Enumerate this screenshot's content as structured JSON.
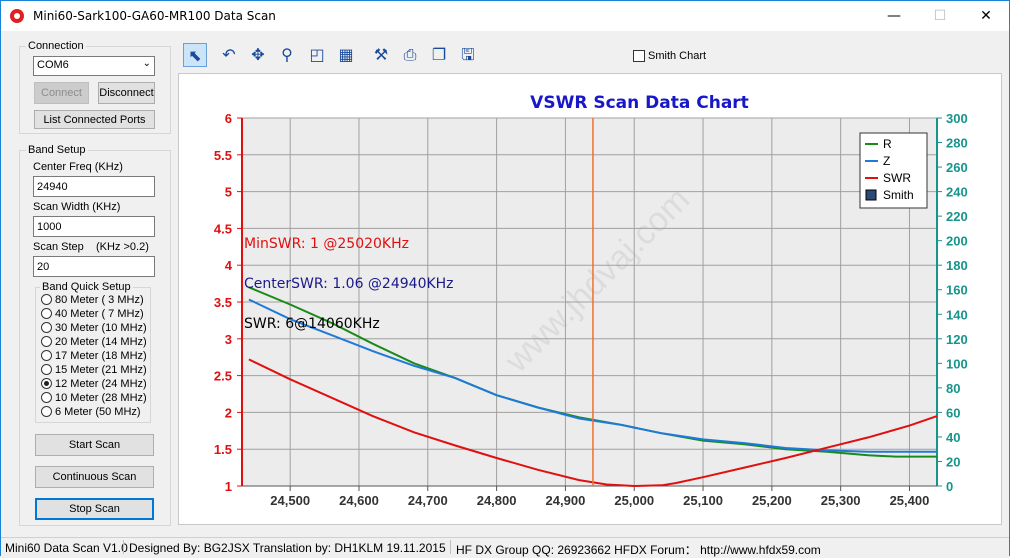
{
  "window": {
    "title": "Mini60-Sark100-GA60-MR100 Data Scan",
    "min_glyph": "—",
    "max_glyph": "☐",
    "close_glyph": "✕"
  },
  "connection": {
    "group_label": "Connection",
    "port_value": "COM6",
    "connect_label": "Connect",
    "disconnect_label": "Disconnect",
    "list_ports_label": "List Connected Ports"
  },
  "band_setup": {
    "group_label": "Band Setup",
    "center_freq_label": "Center Freq  (KHz)",
    "center_freq_value": "24940",
    "scan_width_label": "Scan Width   (KHz)",
    "scan_width_value": "1000",
    "scan_step_label": "Scan Step",
    "scan_step_hint": "(KHz >0.2)",
    "scan_step_value": "20",
    "quick_label": "Band Quick Setup",
    "bands": [
      {
        "label": "80 Meter  (  3 MHz)",
        "checked": false
      },
      {
        "label": "40 Meter  (  7 MHz)",
        "checked": false
      },
      {
        "label": "30 Meter  (10 MHz)",
        "checked": false
      },
      {
        "label": "20 Meter  (14 MHz)",
        "checked": false
      },
      {
        "label": "17 Meter  (18 MHz)",
        "checked": false
      },
      {
        "label": "15 Meter  (21 MHz)",
        "checked": false
      },
      {
        "label": "12 Meter  (24 MHz)",
        "checked": true
      },
      {
        "label": "10 Meter  (28 MHz)",
        "checked": false
      },
      {
        "label": "6 Meter   (50 MHz)",
        "checked": false
      }
    ]
  },
  "scan_buttons": {
    "start": "Start Scan",
    "continuous": "Continuous Scan",
    "stop": "Stop Scan"
  },
  "toolbar": {
    "tools": [
      {
        "name": "select-tool",
        "icon": "arrow-icon",
        "glyph": "⬉",
        "active": true
      },
      {
        "name": "undo-zoom-tool",
        "icon": "undo-icon",
        "glyph": "↶",
        "active": false
      },
      {
        "name": "pan-tool",
        "icon": "move-icon",
        "glyph": "✥",
        "active": false
      },
      {
        "name": "zoom-tool",
        "icon": "magnifier-icon",
        "glyph": "⚲",
        "active": false
      },
      {
        "name": "zoom-area-tool",
        "icon": "zoom-box-icon",
        "glyph": "◰",
        "active": false
      },
      {
        "name": "chart-settings-tool",
        "icon": "chart-icon",
        "glyph": "▦",
        "active": false
      },
      {
        "name": "properties-tool",
        "icon": "tools-icon",
        "glyph": "⚒",
        "active": false
      },
      {
        "name": "print-tool",
        "icon": "printer-icon",
        "glyph": "⎙",
        "active": false
      },
      {
        "name": "copy-tool",
        "icon": "copy-icon",
        "glyph": "❐",
        "active": false
      },
      {
        "name": "save-tool",
        "icon": "floppy-icon",
        "glyph": "🖫",
        "active": false
      }
    ],
    "smith_label": "Smith Chart",
    "smith_checked": false
  },
  "chart_data": {
    "type": "line",
    "title": "VSWR Scan Data Chart",
    "xlabel": "",
    "ylabel": "",
    "xlim": [
      24430,
      25440
    ],
    "x_ticks": [
      24500,
      24600,
      24700,
      24800,
      24900,
      25000,
      25100,
      25200,
      25300,
      25400
    ],
    "x_tick_labels": [
      "24,500",
      "24,600",
      "24,700",
      "24,800",
      "24,900",
      "25,000",
      "25,100",
      "25,200",
      "25,300",
      "25,400"
    ],
    "y_left_lim": [
      1,
      6
    ],
    "y_left_ticks": [
      "1",
      "1.5",
      "2",
      "2.5",
      "3",
      "3.5",
      "4",
      "4.5",
      "5",
      "5.5",
      "6"
    ],
    "y_right_lim": [
      0,
      300
    ],
    "y_right_ticks": [
      "0",
      "20",
      "40",
      "60",
      "80",
      "100",
      "120",
      "140",
      "160",
      "180",
      "200",
      "220",
      "240",
      "260",
      "280",
      "300"
    ],
    "grid": true,
    "legend_position": "top-right",
    "cursor_x": 24940,
    "series": [
      {
        "name": "R",
        "axis": "right",
        "color": "#1a8a1a",
        "x": [
          24440,
          24500,
          24560,
          24620,
          24680,
          24740,
          24800,
          24860,
          24920,
          24980,
          25040,
          25100,
          25160,
          25220,
          25280,
          25340,
          25380,
          25440
        ],
        "y": [
          162,
          148,
          133,
          116,
          100,
          88,
          74,
          64,
          56,
          50,
          43,
          37,
          34,
          30,
          28,
          25,
          24,
          24
        ]
      },
      {
        "name": "Z",
        "axis": "right",
        "color": "#1e7ad8",
        "x": [
          24440,
          24500,
          24560,
          24620,
          24680,
          24740,
          24800,
          24860,
          24920,
          24980,
          25040,
          25100,
          25160,
          25220,
          25280,
          25340,
          25380,
          25440
        ],
        "y": [
          152,
          136,
          123,
          110,
          98,
          88,
          74,
          64,
          55,
          50,
          43,
          38,
          35,
          31,
          29,
          28,
          28,
          28
        ]
      },
      {
        "name": "SWR",
        "axis": "left",
        "color": "#e01010",
        "x": [
          24440,
          24500,
          24560,
          24620,
          24680,
          24740,
          24800,
          24860,
          24920,
          24960,
          25000,
          25040,
          25060,
          25100,
          25160,
          25220,
          25280,
          25340,
          25400,
          25440
        ],
        "y": [
          2.72,
          2.45,
          2.2,
          1.95,
          1.73,
          1.55,
          1.38,
          1.22,
          1.08,
          1.02,
          1.0,
          1.01,
          1.04,
          1.12,
          1.25,
          1.38,
          1.52,
          1.66,
          1.82,
          1.95
        ]
      }
    ],
    "legend": [
      {
        "name": "R",
        "kind": "line",
        "color": "#1a8a1a"
      },
      {
        "name": "Z",
        "kind": "line",
        "color": "#1e7ad8"
      },
      {
        "name": "SWR",
        "kind": "line",
        "color": "#e01010"
      },
      {
        "name": "Smith",
        "kind": "box",
        "color": "#2a4a7a"
      }
    ],
    "annotations": [
      {
        "text": "MinSWR: 1 @25020KHz",
        "color": "#e01010"
      },
      {
        "text": "CenterSWR: 1.06 @24940KHz",
        "color": "#1a1a8a"
      },
      {
        "text": "SWR: 6@14060KHz",
        "color": "#000000"
      }
    ],
    "watermark": "www.jhdvaj.com"
  },
  "statusbar": {
    "app": "Mini60 Data Scan V1.0",
    "designer": "Designed By: BG2JSX  Translation by: DH1KLM   19.11.2015",
    "group": "HF DX Group QQ: 26923662  HFDX Forum：  http://www.hfdx59.com"
  }
}
